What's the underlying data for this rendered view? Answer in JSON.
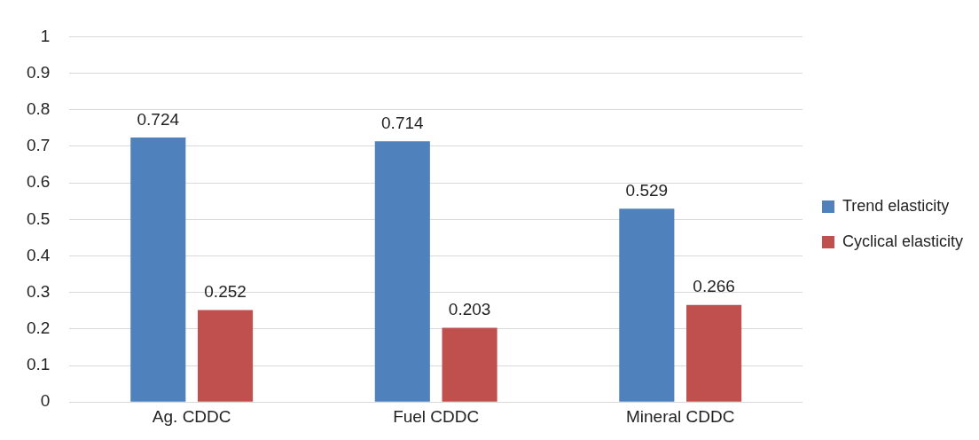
{
  "chart_data": {
    "type": "bar",
    "categories": [
      "Ag. CDDC",
      "Fuel CDDC",
      "Mineral CDDC"
    ],
    "series": [
      {
        "name": "Trend elasticity",
        "color": "#4f81bd",
        "values": [
          0.724,
          0.714,
          0.529
        ]
      },
      {
        "name": "Cyclical elasticity",
        "color": "#c0504d",
        "values": [
          0.252,
          0.203,
          0.266
        ]
      }
    ],
    "ylim": [
      0,
      1
    ],
    "yticks": [
      0,
      0.1,
      0.2,
      0.3,
      0.4,
      0.5,
      0.6,
      0.7,
      0.8,
      0.9,
      1
    ],
    "grid": "y",
    "legend": "right",
    "data_labels": true
  }
}
